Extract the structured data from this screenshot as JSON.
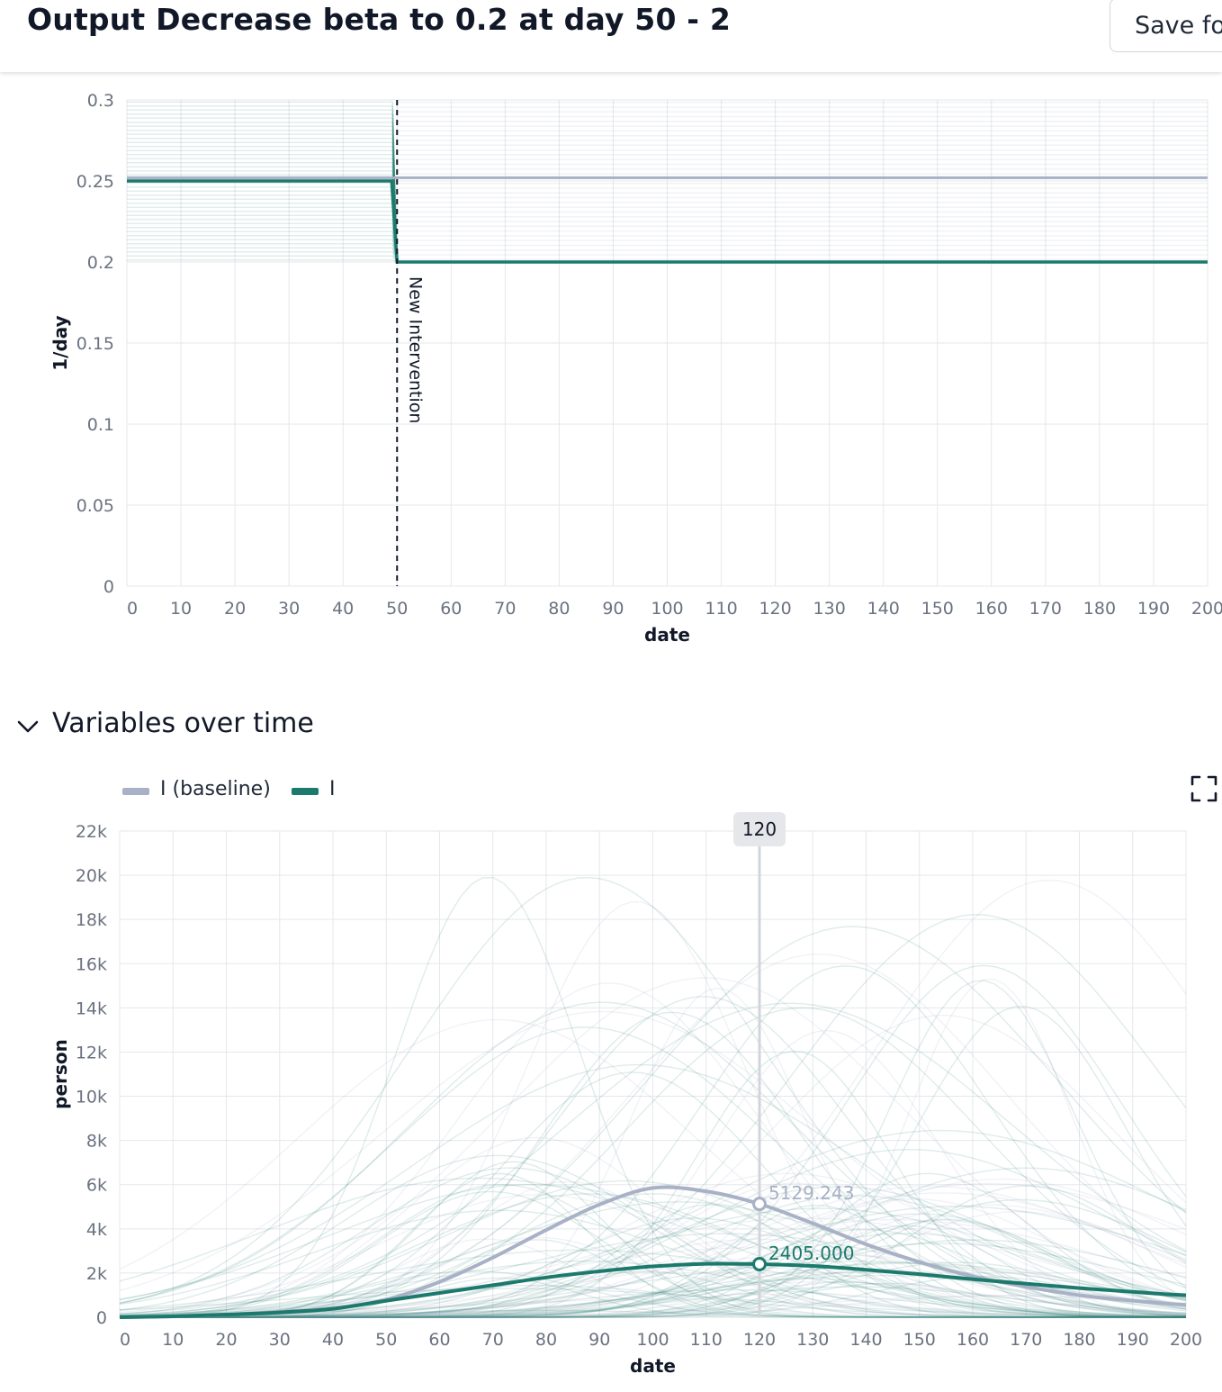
{
  "header": {
    "title": "Output Decrease beta to 0.2 at day 50 - 2",
    "save_label": "Save for"
  },
  "colors": {
    "baseline": "#a9b1c6",
    "intervention": "#1b7a6c",
    "ensemble_teal": "#1b7a6c",
    "ensemble_gray": "#a9b1c6",
    "grid": "#e5e7eb"
  },
  "section": {
    "title": "Variables over time",
    "chevron_icon": "chevron-down-icon",
    "expand_icon": "fullscreen-icon"
  },
  "chart_data": [
    {
      "type": "line",
      "xlabel": "date",
      "ylabel": "1/day",
      "xlim": [
        0,
        200
      ],
      "ylim": [
        0,
        0.3
      ],
      "x_ticks": [
        0,
        10,
        20,
        30,
        40,
        50,
        60,
        70,
        80,
        90,
        100,
        110,
        120,
        130,
        140,
        150,
        160,
        170,
        180,
        190,
        200
      ],
      "y_ticks": [
        0,
        0.05,
        0.1,
        0.15,
        0.2,
        0.25,
        0.3
      ],
      "x_tick_labels": [
        "0",
        "10",
        "20",
        "30",
        "40",
        "50",
        "60",
        "70",
        "80",
        "90",
        "100",
        "110",
        "120",
        "130",
        "140",
        "150",
        "160",
        "170",
        "180",
        "190",
        "200"
      ],
      "y_tick_labels": [
        "0",
        "0.05",
        "0.1",
        "0.15",
        "0.2",
        "0.25",
        "0.3"
      ],
      "grid": true,
      "series": [
        {
          "role": "baseline",
          "x": [
            0,
            200
          ],
          "values": [
            0.252,
            0.252
          ]
        },
        {
          "role": "intervention",
          "x": [
            0,
            49,
            50,
            200
          ],
          "values": [
            0.25,
            0.25,
            0.2,
            0.2
          ]
        }
      ],
      "ensemble_range": {
        "before_intervention": [
          0.2,
          0.3
        ],
        "after_intervention_baseline": [
          0.2,
          0.3
        ],
        "after_intervention_value": 0.2
      },
      "annotations": [
        {
          "type": "vline",
          "x": 50,
          "style": "dashed",
          "label": "New Intervention"
        }
      ]
    },
    {
      "type": "line",
      "xlabel": "date",
      "ylabel": "person",
      "xlim": [
        0,
        200
      ],
      "ylim": [
        0,
        22000
      ],
      "x_ticks": [
        0,
        10,
        20,
        30,
        40,
        50,
        60,
        70,
        80,
        90,
        100,
        110,
        120,
        130,
        140,
        150,
        160,
        170,
        180,
        190,
        200
      ],
      "y_ticks": [
        0,
        2000,
        4000,
        6000,
        8000,
        10000,
        12000,
        14000,
        16000,
        18000,
        20000,
        22000
      ],
      "x_tick_labels": [
        "0",
        "10",
        "20",
        "30",
        "40",
        "50",
        "60",
        "70",
        "80",
        "90",
        "100",
        "110",
        "120",
        "130",
        "140",
        "150",
        "160",
        "170",
        "180",
        "190",
        "200"
      ],
      "y_tick_labels": [
        "0",
        "2k",
        "4k",
        "6k",
        "8k",
        "10k",
        "12k",
        "14k",
        "16k",
        "18k",
        "20k",
        "22k"
      ],
      "grid": true,
      "legend_position": "top-left",
      "series": [
        {
          "name": "I (baseline)",
          "role": "baseline",
          "x": [
            0,
            10,
            20,
            30,
            40,
            50,
            60,
            70,
            80,
            90,
            100,
            110,
            120,
            130,
            140,
            150,
            160,
            170,
            180,
            190,
            200
          ],
          "values": [
            0,
            40,
            120,
            250,
            420,
            800,
            1600,
            2700,
            3950,
            5100,
            5850,
            5700,
            5129,
            4250,
            3300,
            2500,
            1850,
            1380,
            1000,
            750,
            560
          ]
        },
        {
          "name": "I",
          "role": "intervention",
          "x": [
            0,
            10,
            20,
            30,
            40,
            50,
            60,
            70,
            80,
            90,
            100,
            110,
            120,
            130,
            140,
            150,
            160,
            170,
            180,
            190,
            200
          ],
          "values": [
            0,
            40,
            120,
            220,
            380,
            750,
            1100,
            1450,
            1800,
            2080,
            2300,
            2420,
            2405,
            2320,
            2150,
            1950,
            1720,
            1520,
            1320,
            1150,
            1000
          ]
        }
      ],
      "hover": {
        "x": 120,
        "x_label": "120",
        "values": [
          {
            "role": "baseline",
            "value": 5129.243,
            "label": "5129.243"
          },
          {
            "role": "intervention",
            "value": 2405.0,
            "label": "2405.000"
          }
        ]
      }
    }
  ]
}
